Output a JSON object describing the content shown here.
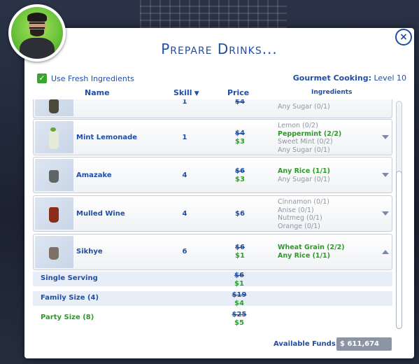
{
  "dialog": {
    "title": "Prepare Drinks...",
    "close_icon": "×",
    "use_fresh_label": "Use Fresh Ingredients",
    "use_fresh_checked": true,
    "skill_name": "Gourmet Cooking:",
    "skill_level": "Level 10"
  },
  "columns": {
    "name": "Name",
    "skill": "Skill",
    "price": "Price",
    "ingredients": "Ingredients"
  },
  "rows": [
    {
      "name": "",
      "skill": "1",
      "old_price": "$4",
      "new_price": "",
      "ingredients": [
        {
          "text": "Any Sugar (0/1)",
          "status": "missing"
        }
      ]
    },
    {
      "name": "Mint Lemonade",
      "skill": "1",
      "old_price": "$4",
      "new_price": "$3",
      "ingredients": [
        {
          "text": "Lemon (0/2)",
          "status": "missing"
        },
        {
          "text": "Peppermint (2/2)",
          "status": "have"
        },
        {
          "text": "Sweet Mint (0/2)",
          "status": "missing"
        },
        {
          "text": "Any Sugar (0/1)",
          "status": "missing"
        }
      ]
    },
    {
      "name": "Amazake",
      "skill": "4",
      "old_price": "$6",
      "new_price": "$3",
      "ingredients": [
        {
          "text": "Any Rice (1/1)",
          "status": "have"
        },
        {
          "text": "Any Sugar (0/1)",
          "status": "missing"
        }
      ]
    },
    {
      "name": "Mulled Wine",
      "skill": "4",
      "old_price": "",
      "new_price": "$6",
      "ingredients": [
        {
          "text": "Cinnamon (0/1)",
          "status": "missing"
        },
        {
          "text": "Anise (0/1)",
          "status": "missing"
        },
        {
          "text": "Nutmeg (0/1)",
          "status": "missing"
        },
        {
          "text": "Orange (0/1)",
          "status": "missing"
        }
      ]
    },
    {
      "name": "Sikhye",
      "skill": "6",
      "old_price": "$6",
      "new_price": "$1",
      "ingredients": [
        {
          "text": "Wheat Grain (2/2)",
          "status": "have"
        },
        {
          "text": "Any Rice (1/1)",
          "status": "have"
        }
      ]
    }
  ],
  "servings": [
    {
      "label": "Single Serving",
      "old_price": "$6",
      "new_price": "$1"
    },
    {
      "label": "Family Size (4)",
      "old_price": "$19",
      "new_price": "$4"
    },
    {
      "label": "Party Size (8)",
      "old_price": "$25",
      "new_price": "$5"
    }
  ],
  "funds": {
    "label": "Available Funds:",
    "value": "$ 611,674"
  },
  "colors": {
    "accent_blue": "#1f4ea8",
    "have_green": "#2b9b25",
    "missing_grey": "#9096a0"
  }
}
